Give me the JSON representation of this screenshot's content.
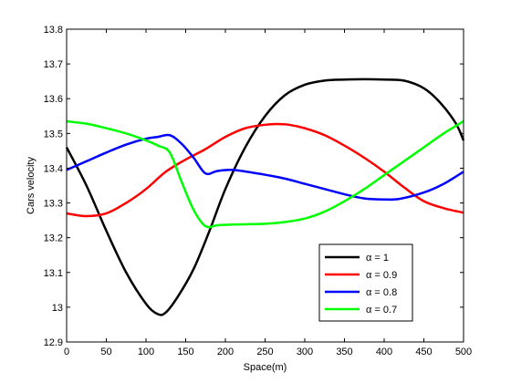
{
  "chart_data": {
    "type": "line",
    "title": "",
    "xlabel": "Space(m)",
    "ylabel": "Cars velocity",
    "xlim": [
      0,
      500
    ],
    "ylim": [
      12.9,
      13.8
    ],
    "xticks": [
      0,
      50,
      100,
      150,
      200,
      250,
      300,
      350,
      400,
      450,
      500
    ],
    "yticks": [
      12.9,
      13,
      13.1,
      13.2,
      13.3,
      13.4,
      13.5,
      13.6,
      13.7,
      13.8
    ],
    "xtick_labels": [
      "0",
      "50",
      "100",
      "150",
      "200",
      "250",
      "300",
      "350",
      "400",
      "450",
      "500"
    ],
    "ytick_labels": [
      "12.9",
      "13",
      "13.1",
      "13.2",
      "13.3",
      "13.4",
      "13.5",
      "13.6",
      "13.7",
      "13.8"
    ],
    "grid": false,
    "legend_position": "bottom-right",
    "series": [
      {
        "name": "α = 1",
        "color": "#000000",
        "x": [
          0,
          25,
          50,
          75,
          100,
          115,
          125,
          140,
          160,
          180,
          200,
          225,
          250,
          275,
          300,
          325,
          350,
          375,
          400,
          425,
          450,
          470,
          490,
          500
        ],
        "y": [
          13.46,
          13.35,
          13.22,
          13.1,
          13.01,
          12.98,
          12.985,
          13.03,
          13.11,
          13.22,
          13.34,
          13.46,
          13.55,
          13.61,
          13.64,
          13.652,
          13.655,
          13.656,
          13.655,
          13.652,
          13.63,
          13.59,
          13.53,
          13.48
        ]
      },
      {
        "name": "α = 0.9",
        "color": "#ff0000",
        "x": [
          0,
          25,
          50,
          75,
          100,
          125,
          150,
          175,
          200,
          225,
          250,
          265,
          280,
          300,
          325,
          350,
          375,
          400,
          425,
          450,
          475,
          500
        ],
        "y": [
          13.27,
          13.262,
          13.27,
          13.3,
          13.34,
          13.39,
          13.425,
          13.455,
          13.49,
          13.515,
          13.525,
          13.527,
          13.525,
          13.515,
          13.495,
          13.465,
          13.43,
          13.39,
          13.345,
          13.305,
          13.285,
          13.272
        ]
      },
      {
        "name": "α = 0.8",
        "color": "#0000ff",
        "x": [
          0,
          25,
          50,
          75,
          100,
          115,
          130,
          145,
          160,
          175,
          190,
          210,
          240,
          275,
          300,
          325,
          350,
          375,
          400,
          420,
          450,
          475,
          500
        ],
        "y": [
          13.395,
          13.42,
          13.445,
          13.468,
          13.485,
          13.49,
          13.495,
          13.47,
          13.43,
          13.385,
          13.392,
          13.395,
          13.385,
          13.37,
          13.355,
          13.34,
          13.325,
          13.313,
          13.31,
          13.312,
          13.33,
          13.355,
          13.39
        ]
      },
      {
        "name": "α = 0.7",
        "color": "#00ff00",
        "x": [
          0,
          25,
          50,
          75,
          100,
          115,
          130,
          145,
          160,
          175,
          190,
          210,
          250,
          275,
          300,
          325,
          350,
          375,
          400,
          425,
          450,
          475,
          500
        ],
        "y": [
          13.535,
          13.528,
          13.515,
          13.5,
          13.48,
          13.465,
          13.445,
          13.36,
          13.28,
          13.233,
          13.236,
          13.238,
          13.24,
          13.245,
          13.255,
          13.275,
          13.305,
          13.34,
          13.38,
          13.42,
          13.46,
          13.5,
          13.535
        ]
      }
    ]
  }
}
